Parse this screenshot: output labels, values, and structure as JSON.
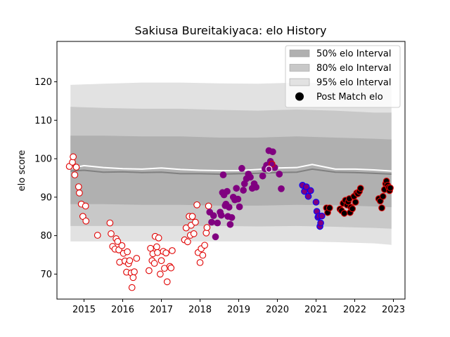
{
  "chart_data": {
    "type": "scatter",
    "title": "Sakiusa Bureitakiyaca: elo History",
    "xlabel": "",
    "ylabel": "elo score",
    "xlim": [
      2014.3,
      2023.3
    ],
    "ylim": [
      63.5,
      130.5
    ],
    "x_ticks": [
      {
        "value": 2015,
        "label": "2015"
      },
      {
        "value": 2016,
        "label": "2016"
      },
      {
        "value": 2017,
        "label": "2017"
      },
      {
        "value": 2018,
        "label": "2018"
      },
      {
        "value": 2019,
        "label": "2019"
      },
      {
        "value": 2020,
        "label": "2020"
      },
      {
        "value": 2021,
        "label": "2021"
      },
      {
        "value": 2022,
        "label": "2022"
      },
      {
        "value": 2023,
        "label": "2023"
      }
    ],
    "y_ticks": [
      {
        "value": 70,
        "label": "70"
      },
      {
        "value": 80,
        "label": "80"
      },
      {
        "value": 90,
        "label": "90"
      },
      {
        "value": 100,
        "label": "100"
      },
      {
        "value": 110,
        "label": "110"
      },
      {
        "value": 120,
        "label": "120"
      }
    ],
    "legend_position": "top-right",
    "legend": [
      {
        "label": "50% elo Interval",
        "kind": "band",
        "color": "#b0b0b0"
      },
      {
        "label": "80% elo Interval",
        "kind": "band",
        "color": "#c8c8c8"
      },
      {
        "label": "95% elo Interval",
        "kind": "band",
        "color": "#e2e2e2"
      },
      {
        "label": "Post Match elo",
        "kind": "marker",
        "color": "#000000"
      }
    ],
    "band_x": [
      2014.65,
      2015.5,
      2016.5,
      2017.5,
      2018.5,
      2019.5,
      2020.5,
      2021.5,
      2022.5,
      2022.95
    ],
    "band95": {
      "lower": [
        78.5,
        78.5,
        78.5,
        78.5,
        78.5,
        78.5,
        78.5,
        78.3,
        78.0,
        77.6
      ],
      "upper": [
        119.2,
        119.5,
        119.8,
        119.8,
        119.6,
        119.5,
        119.8,
        119.6,
        119.2,
        119.0
      ]
    },
    "band80": {
      "lower": [
        82.5,
        82.5,
        82.5,
        82.5,
        82.5,
        82.4,
        82.5,
        82.3,
        82.0,
        81.8
      ],
      "upper": [
        113.5,
        113.2,
        113.0,
        113.0,
        112.7,
        112.5,
        112.8,
        112.5,
        112.0,
        112.0
      ]
    },
    "band50": {
      "lower": [
        88.2,
        88.2,
        88.0,
        88.0,
        87.8,
        87.8,
        88.0,
        87.9,
        87.6,
        87.4
      ],
      "upper": [
        106.0,
        106.0,
        105.8,
        105.8,
        105.5,
        105.5,
        105.8,
        105.5,
        105.2,
        105.0
      ]
    },
    "median_line": {
      "x": [
        2014.65,
        2015.0,
        2015.5,
        2016.0,
        2016.5,
        2017.0,
        2017.5,
        2018.0,
        2018.5,
        2019.0,
        2019.5,
        2020.0,
        2020.5,
        2020.9,
        2021.5,
        2022.0,
        2022.5,
        2022.95
      ],
      "y": [
        96.8,
        97.0,
        96.5,
        96.6,
        96.4,
        96.5,
        96.1,
        96.1,
        96.0,
        96.1,
        96.2,
        96.4,
        96.5,
        97.3,
        96.5,
        96.4,
        96.2,
        96.0
      ]
    },
    "mean_line": {
      "x": [
        2014.65,
        2015.0,
        2015.5,
        2016.0,
        2016.5,
        2017.0,
        2017.5,
        2018.0,
        2018.5,
        2019.0,
        2019.5,
        2020.0,
        2020.5,
        2020.9,
        2021.5,
        2022.0,
        2022.5,
        2022.95
      ],
      "y": [
        97.5,
        98.2,
        97.7,
        97.4,
        97.3,
        97.6,
        97.2,
        97.0,
        96.9,
        96.9,
        97.2,
        97.6,
        97.7,
        98.5,
        97.3,
        97.3,
        97.1,
        96.8
      ]
    },
    "series": [
      {
        "face": "#ffffff",
        "edge": "#e00000",
        "x": [
          2014.62,
          2014.7,
          2014.72,
          2014.76,
          2014.8,
          2014.86,
          2014.88,
          2014.93,
          2014.97,
          2015.04,
          2015.05,
          2015.35,
          2015.67,
          2015.7,
          2015.74,
          2015.8,
          2015.83,
          2015.87,
          2015.9,
          2015.92,
          2015.98,
          2016.02,
          2016.06,
          2016.1,
          2016.12,
          2016.15,
          2016.18,
          2016.22,
          2016.24,
          2016.27,
          2016.3,
          2016.36,
          2016.68,
          2016.72,
          2016.76,
          2016.78,
          2016.82,
          2016.84,
          2016.88,
          2016.9,
          2016.93,
          2016.97,
          2017.0,
          2017.05,
          2017.08,
          2017.12,
          2017.15,
          2017.22,
          2017.25,
          2017.28,
          2017.6,
          2017.64,
          2017.68,
          2017.72,
          2017.75,
          2017.77,
          2017.8,
          2017.84,
          2017.88,
          2017.92,
          2017.95,
          2018.0,
          2018.03,
          2018.07,
          2018.12,
          2018.16,
          2018.18,
          2018.22
        ],
        "y": [
          98,
          99.1,
          100.5,
          95.8,
          97.8,
          92.7,
          91.1,
          88.2,
          85.0,
          87.7,
          83.8,
          80.1,
          83.3,
          80.5,
          77.2,
          76.5,
          79.2,
          78.5,
          76.3,
          73.1,
          77.4,
          75.4,
          73.4,
          70.5,
          75.8,
          72.7,
          73.5,
          70.3,
          66.5,
          69.1,
          70.6,
          74.1,
          70.9,
          76.7,
          73.5,
          75.3,
          72.8,
          79.8,
          77.1,
          75.6,
          79.4,
          70.0,
          73.5,
          75.9,
          71.5,
          75.5,
          68.0,
          72.0,
          71.6,
          76.1,
          78.9,
          82.0,
          78.4,
          85.0,
          80.1,
          82.7,
          85.0,
          80.5,
          83.5,
          88.0,
          75.6,
          73.0,
          76.6,
          74.9,
          77.5,
          80.7,
          82.1,
          87.7
        ]
      },
      {
        "face": "#800080",
        "edge": "#800080",
        "x": [
          2018.25,
          2018.3,
          2018.35,
          2018.4,
          2018.45,
          2018.52,
          2018.55,
          2018.58,
          2018.6,
          2018.62,
          2018.65,
          2018.67,
          2018.7,
          2018.72,
          2018.75,
          2018.78,
          2018.82,
          2018.86,
          2018.9,
          2018.94,
          2018.98,
          2019.02,
          2019.08,
          2019.12,
          2019.15,
          2019.2,
          2019.25,
          2019.3,
          2019.35,
          2019.4,
          2019.45,
          2019.62,
          2019.68,
          2019.72,
          2019.78,
          2019.82,
          2019.88,
          2019.93,
          2020.05,
          2020.1
        ],
        "y": [
          86.1,
          83.5,
          85.2,
          79.7,
          83.3,
          86.1,
          85.3,
          91.2,
          95.8,
          90.6,
          87.8,
          88.2,
          91.5,
          85.0,
          87.4,
          82.9,
          84.7,
          90.0,
          89.3,
          92.3,
          89.5,
          87.5,
          97.5,
          91.8,
          93.5,
          94.8,
          96.0,
          95.2,
          92.3,
          93.5,
          92.6,
          95.5,
          97.4,
          98.3,
          102.1,
          99.3,
          101.8,
          97.7,
          96.0,
          92.2
        ]
      },
      {
        "face": "#800080",
        "edge": "#0000ff",
        "x": [
          2020.65,
          2020.7,
          2020.75,
          2020.8,
          2020.86,
          2021.0,
          2021.02,
          2021.05,
          2021.08,
          2021.1,
          2021.12,
          2021.15
        ],
        "y": [
          93.1,
          91.5,
          92.7,
          90.2,
          91.7,
          88.7,
          86.3,
          84.8,
          85.1,
          82.4,
          83.3,
          85.1
        ]
      },
      {
        "face": "#800080",
        "edge": "#e00000",
        "x": [
          2019.86
        ],
        "y": [
          98.6
        ]
      },
      {
        "face": "#800080",
        "edge": "#ffffff",
        "x": [
          2019.78
        ],
        "y": [
          97.3
        ]
      },
      {
        "face": "#000000",
        "edge": "#e00000",
        "x": [
          2021.27,
          2021.3,
          2021.35,
          2021.62,
          2021.66,
          2021.7,
          2021.73,
          2021.76,
          2021.8,
          2021.83,
          2021.86,
          2021.88,
          2021.9,
          2021.94,
          2021.98,
          2022.02,
          2022.05,
          2022.08,
          2022.12,
          2022.15,
          2022.62,
          2022.66,
          2022.7,
          2022.73,
          2022.77,
          2022.8,
          2022.82,
          2022.85,
          2022.88,
          2022.9,
          2022.92
        ],
        "y": [
          87.2,
          86.0,
          87.2,
          86.9,
          86.5,
          88.4,
          85.8,
          89.2,
          88.0,
          88.8,
          89.6,
          86.0,
          87.4,
          87.0,
          90.2,
          88.7,
          91.1,
          90.9,
          91.5,
          92.3,
          89.6,
          89.0,
          87.2,
          90.2,
          92.0,
          93.5,
          94.2,
          93.1,
          92.5,
          91.7,
          92.4
        ]
      }
    ]
  }
}
